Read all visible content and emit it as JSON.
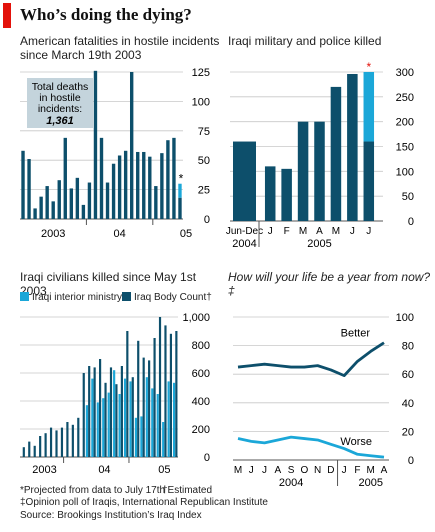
{
  "title": "Who’s doing the dying?",
  "colors": {
    "dark": "#0d4f6b",
    "light": "#1ba7d8",
    "grid": "#c8c8c8",
    "red": "#e3120b",
    "annot_bg": "#c4d4dc"
  },
  "panels": {
    "tl_title": "American fatalities in hostile incidents since March 19th 2003",
    "tr_title": "Iraqi military and police killed",
    "bl_title": "Iraqi civilians killed since May 1st 2003",
    "br_title": "How will your life be a year from now?‡",
    "annot_line1": "Total deaths",
    "annot_line2": "in hostile",
    "annot_line3": "incidents:",
    "annot_value": "1,361",
    "legend_a": "Iraqi interior ministry†",
    "legend_b": "Iraq Body Count†"
  },
  "footnotes": {
    "f1": "*Projected from data to July 17th",
    "f2": "†Estimated",
    "f3": "‡Opinion poll of Iraqis, International Republican Institute",
    "f4": "Source: Brookings Institution’s Iraq Index"
  },
  "chart_data": [
    {
      "id": "us_fatalities",
      "type": "bar",
      "title": "American fatalities in hostile incidents since March 19th 2003",
      "ylim": [
        0,
        125
      ],
      "yticks": [
        0,
        25,
        50,
        75,
        100,
        125
      ],
      "xlabels": [
        {
          "label": "2003",
          "at": 5
        },
        {
          "label": "04",
          "at": 16
        },
        {
          "label": "05",
          "at": 27
        }
      ],
      "values": [
        58,
        51,
        9,
        19,
        28,
        15,
        33,
        69,
        26,
        35,
        12,
        31,
        126,
        69,
        31,
        47,
        54,
        58,
        125,
        57,
        57,
        53,
        28,
        56,
        67,
        69,
        30
      ],
      "highlight": {
        "index": 26,
        "label": "*",
        "actual": 18
      },
      "grid": true
    },
    {
      "id": "iraqi_military_police",
      "type": "bar",
      "title": "Iraqi military and police killed",
      "categories": [
        "Jun-Dec",
        "J",
        "F",
        "M",
        "A",
        "M",
        "J",
        "J"
      ],
      "group_labels": [
        {
          "label": "2004",
          "at": 0
        },
        {
          "label": "2005",
          "at": 4
        }
      ],
      "values": [
        160,
        110,
        105,
        200,
        200,
        270,
        296,
        300
      ],
      "highlight": {
        "index": 7,
        "label": "*",
        "actual": 160
      },
      "ylim": [
        0,
        300
      ],
      "yticks": [
        0,
        50,
        100,
        150,
        200,
        250,
        300
      ],
      "grid": true
    },
    {
      "id": "iraqi_civilians",
      "type": "bar",
      "title": "Iraqi civilians killed since May 1st 2003",
      "ylim": [
        0,
        1000
      ],
      "yticks": [
        0,
        200,
        400,
        600,
        800,
        1000
      ],
      "ytick_labels": [
        "0",
        "200",
        "400",
        "600",
        "800",
        "1,000"
      ],
      "xlabels": [
        {
          "label": "2003",
          "at": 4
        },
        {
          "label": "04",
          "at": 15
        },
        {
          "label": "05",
          "at": 26
        }
      ],
      "series": [
        {
          "name": "Iraqi interior ministry†",
          "values": [
            0,
            0,
            0,
            0,
            0,
            0,
            0,
            0,
            0,
            0,
            0,
            0,
            370,
            560,
            390,
            420,
            460,
            620,
            450,
            560,
            540,
            280,
            290,
            570,
            490,
            450,
            250,
            540,
            530
          ]
        },
        {
          "name": "Iraq Body Count†",
          "values": [
            70,
            110,
            80,
            150,
            170,
            210,
            190,
            210,
            250,
            230,
            280,
            600,
            650,
            640,
            700,
            530,
            640,
            520,
            650,
            900,
            570,
            830,
            710,
            690,
            850,
            1000,
            940,
            880,
            900
          ]
        }
      ],
      "grid": true
    },
    {
      "id": "opinion_poll",
      "type": "line",
      "title": "How will your life be a year from now?‡",
      "categories": [
        "M",
        "J",
        "J",
        "A",
        "S",
        "O",
        "N",
        "D",
        "J",
        "F",
        "M",
        "A"
      ],
      "group_labels": [
        {
          "label": "2004",
          "at": 4
        },
        {
          "label": "2005",
          "at": 10
        }
      ],
      "series": [
        {
          "name": "Better",
          "values": [
            65,
            66,
            67,
            66,
            65,
            65,
            66,
            63,
            59,
            69,
            76,
            82
          ]
        },
        {
          "name": "Worse",
          "values": [
            15,
            13,
            12,
            14,
            16,
            15,
            14,
            11,
            8,
            4,
            3,
            2
          ]
        }
      ],
      "ylim": [
        0,
        100
      ],
      "yticks": [
        0,
        20,
        40,
        60,
        80,
        100
      ],
      "grid": true
    }
  ]
}
